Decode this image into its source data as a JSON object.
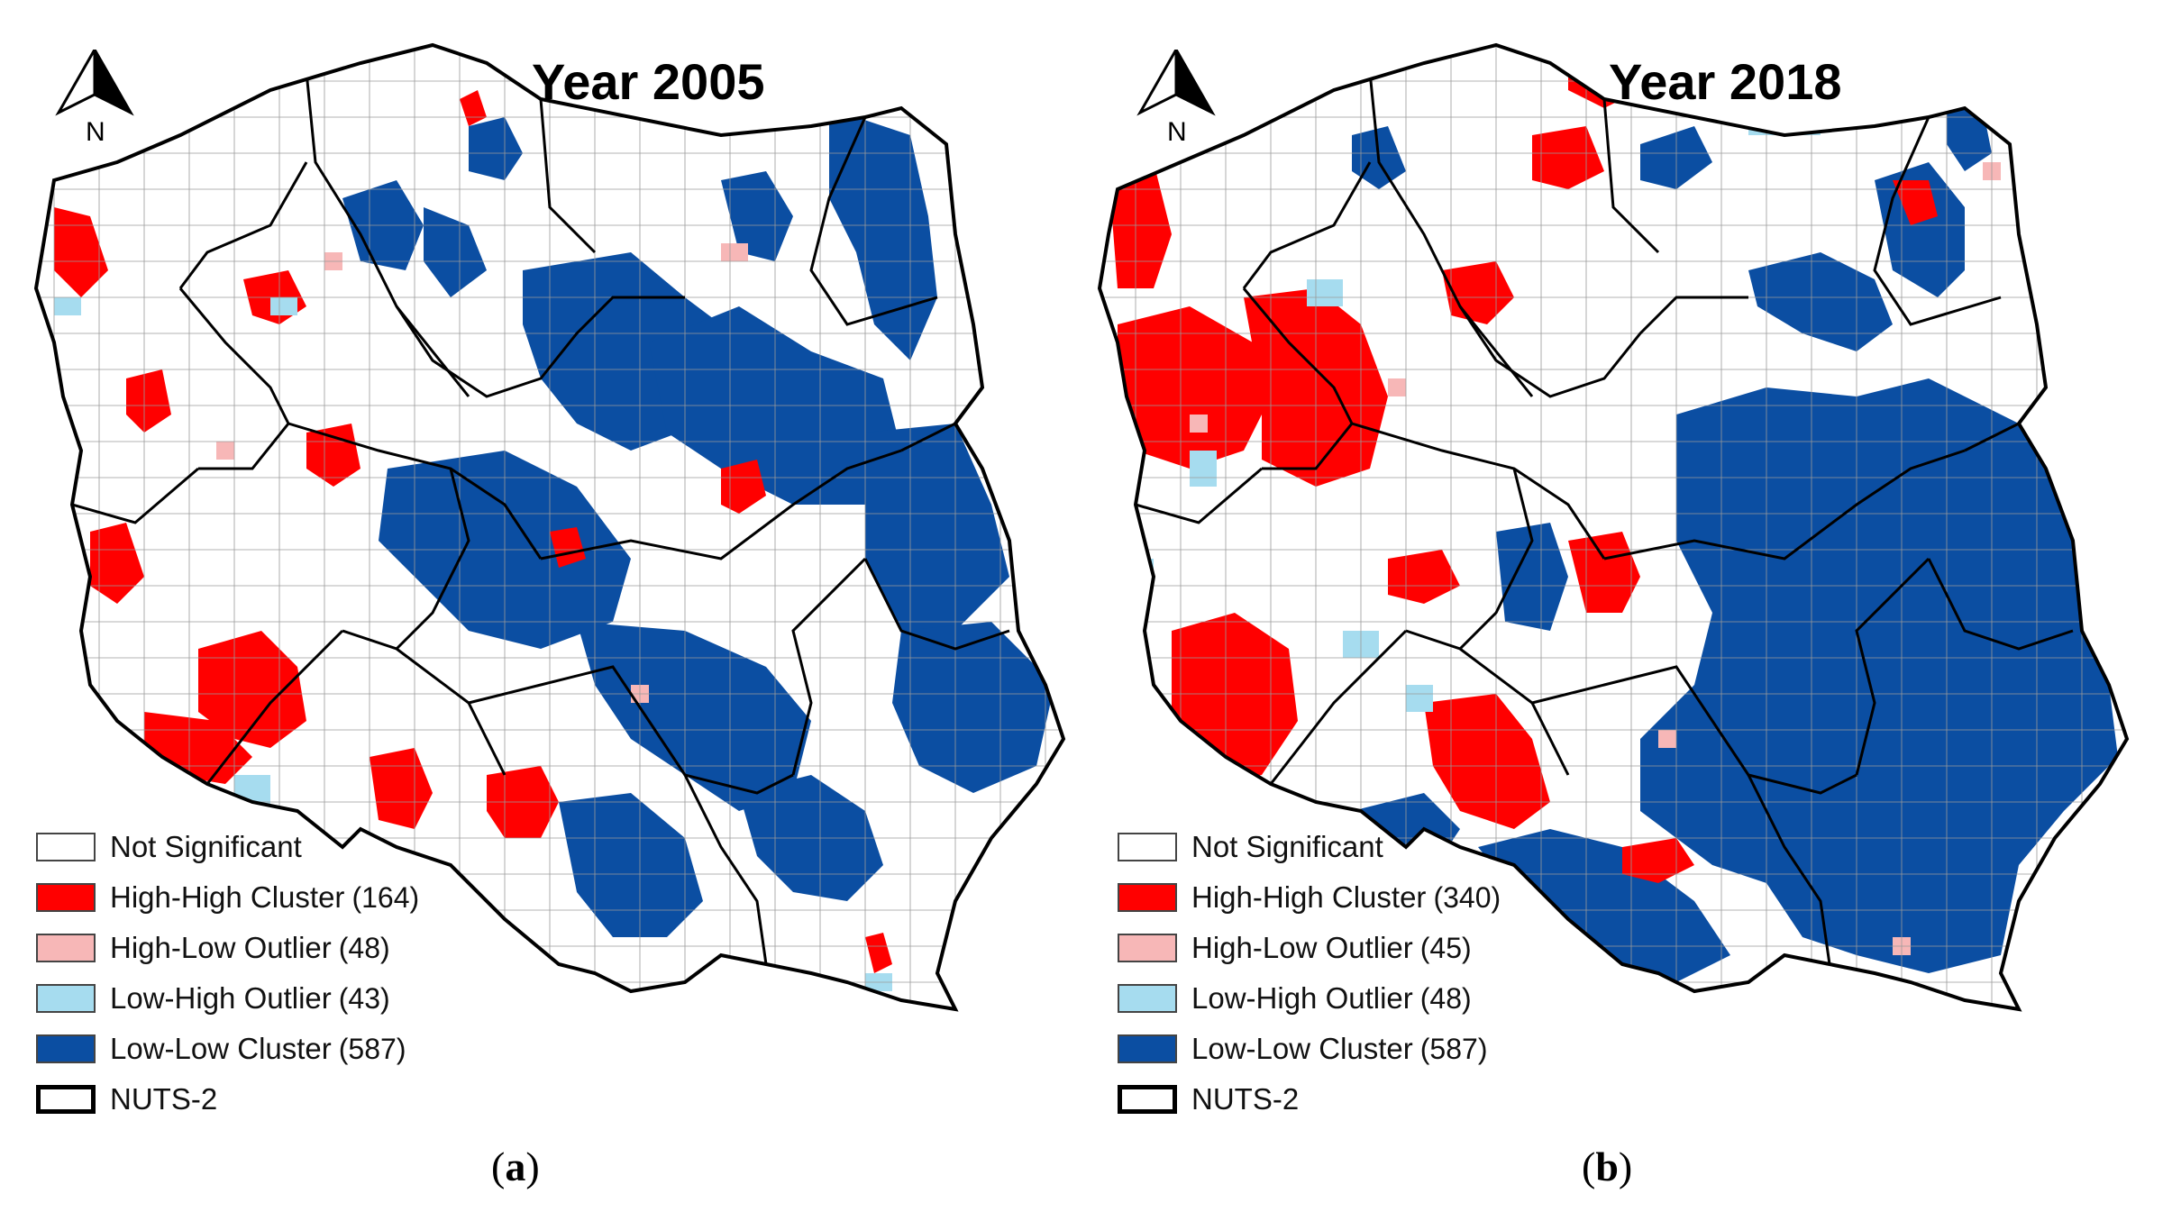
{
  "panels": [
    {
      "id": "a",
      "title": "Year 2005",
      "caption_letter": "a",
      "north": "N",
      "legend": [
        {
          "label": "Not Significant",
          "count": "",
          "color": "#ffffff"
        },
        {
          "label": "High-High Cluster",
          "count": "(164)",
          "color": "#ff0000"
        },
        {
          "label": "High-Low Outlier",
          "count": "(48)",
          "color": "#f7b7b7"
        },
        {
          "label": "Low-High Outlier",
          "count": "(43)",
          "color": "#a6dcef"
        },
        {
          "label": "Low-Low Cluster",
          "count": "(587)",
          "color": "#0b4ea2"
        },
        {
          "label": "NUTS-2",
          "count": "",
          "color": "#000000"
        }
      ]
    },
    {
      "id": "b",
      "title": "Year 2018",
      "caption_letter": "b",
      "north": "N",
      "legend": [
        {
          "label": "Not Significant",
          "count": "",
          "color": "#ffffff"
        },
        {
          "label": "High-High Cluster",
          "count": "(340)",
          "color": "#ff0000"
        },
        {
          "label": "High-Low Outlier",
          "count": "(45)",
          "color": "#f7b7b7"
        },
        {
          "label": "Low-High Outlier",
          "count": "(48)",
          "color": "#a6dcef"
        },
        {
          "label": "Low-Low Cluster",
          "count": "(587)",
          "color": "#0b4ea2"
        },
        {
          "label": "NUTS-2",
          "count": "",
          "color": "#000000"
        }
      ]
    }
  ],
  "colors": {
    "high_high": "#ff0000",
    "high_low": "#f7b7b7",
    "low_high": "#a6dcef",
    "low_low": "#0b4ea2",
    "boundary": "#000000"
  }
}
